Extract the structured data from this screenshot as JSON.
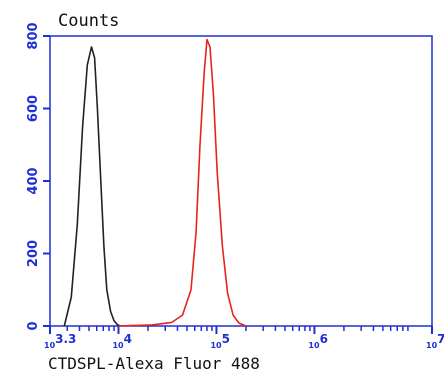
{
  "colors": {
    "axis": "#1f2fd6",
    "control_series": "#222222",
    "sample_series": "#e8231f"
  },
  "chart_data": {
    "type": "line",
    "title": "Counts",
    "xlabel": "CTDSPL-Alexa Fluor 488",
    "ylabel": "",
    "x_scale": "log10",
    "xlim": [
      2000,
      15848932
    ],
    "ylim": [
      0,
      800
    ],
    "y_ticks": [
      0,
      200,
      400,
      600,
      800
    ],
    "x_ticks": [
      {
        "value": 2000,
        "base": "10",
        "exp": "3.3"
      },
      {
        "value": 10000,
        "base": "10",
        "exp": "4"
      },
      {
        "value": 100000,
        "base": "10",
        "exp": "5"
      },
      {
        "value": 1000000,
        "base": "10",
        "exp": "6"
      },
      {
        "value": 15848932,
        "base": "10",
        "exp": "7.2"
      }
    ],
    "grid": false,
    "legend": "none",
    "series": [
      {
        "color": "#222222",
        "x": [
          2800,
          3300,
          3800,
          4300,
          4800,
          5300,
          5700,
          6100,
          6600,
          7100,
          7600,
          8300,
          9000,
          9800,
          10500
        ],
        "y": [
          0,
          80,
          280,
          550,
          720,
          770,
          740,
          600,
          400,
          220,
          100,
          40,
          15,
          3,
          0
        ]
      },
      {
        "color": "#e8231f",
        "x": [
          10000,
          22000,
          35000,
          45000,
          55000,
          62000,
          68000,
          75000,
          80000,
          86000,
          93000,
          102000,
          115000,
          130000,
          148000,
          170000,
          200000
        ],
        "y": [
          0,
          3,
          10,
          30,
          100,
          260,
          500,
          700,
          790,
          770,
          640,
          420,
          220,
          90,
          30,
          8,
          0
        ]
      }
    ]
  }
}
